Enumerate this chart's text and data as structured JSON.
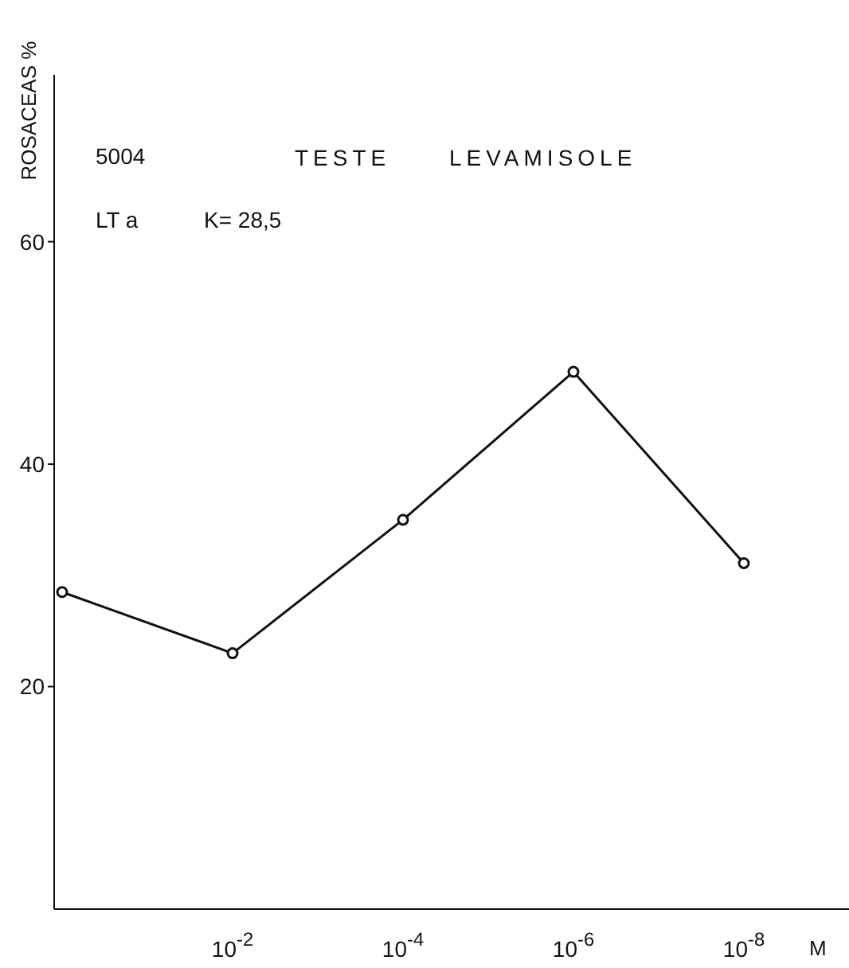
{
  "chart_data": {
    "type": "line",
    "title": "TESTE LEVAMISOLE",
    "ylabel": "ROSACEAS %",
    "xlabel": "M",
    "annotations": [
      "5004",
      "LT a",
      "K= 28,5"
    ],
    "categories": [
      null,
      "10$^{-2}$",
      "10$^{-4}$",
      "10$^{-6}$",
      "10$^{-8}$"
    ],
    "series": [
      {
        "color": "#111111",
        "values": [
          28.5,
          23,
          35,
          48.3,
          31.1
        ]
      }
    ],
    "ylim": [
      0,
      75
    ],
    "yticks": [
      20,
      40,
      60
    ],
    "marker": "circle",
    "line_style": "solid"
  }
}
